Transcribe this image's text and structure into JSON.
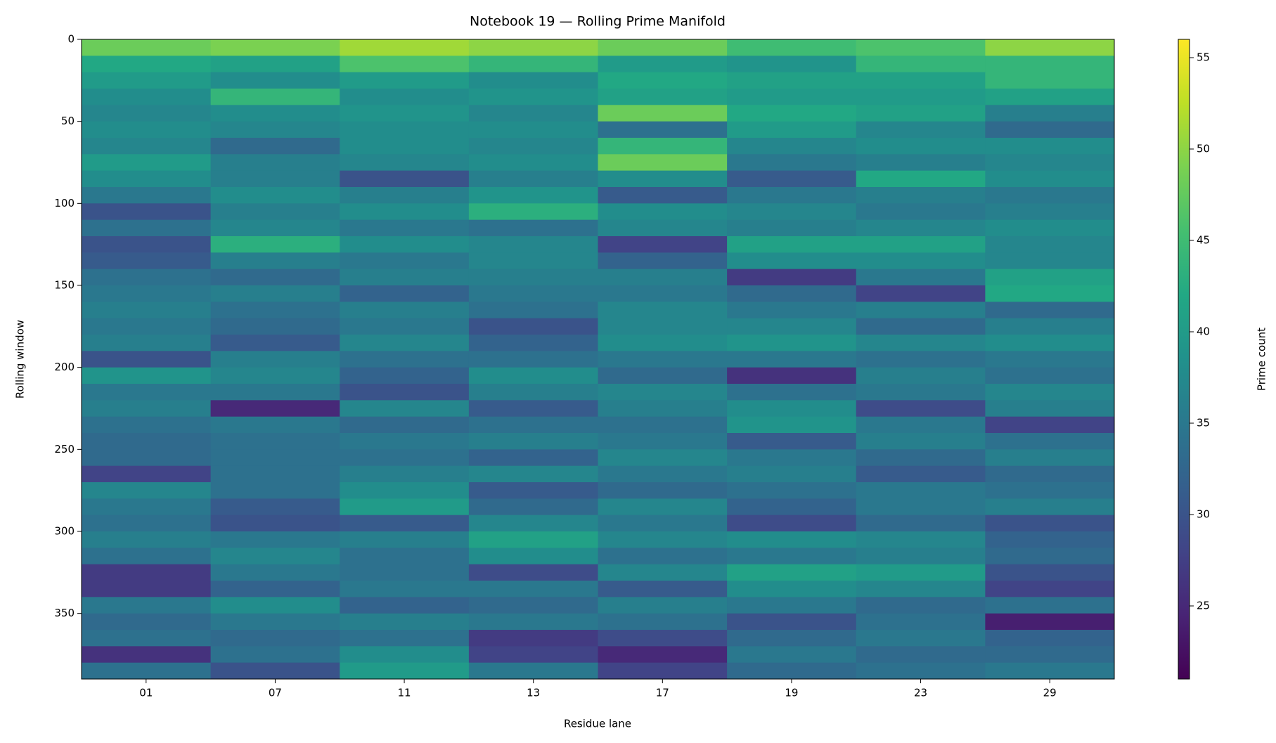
{
  "chart_data": {
    "type": "heatmap",
    "title": "Notebook 19 — Rolling Prime Manifold",
    "x_label": "Residue lane",
    "y_label": "Rolling window",
    "colorbar_label": "Prime count",
    "colormap": "viridis",
    "categories": [
      "01",
      "07",
      "11",
      "13",
      "17",
      "19",
      "23",
      "29"
    ],
    "rows": [
      0,
      10,
      20,
      30,
      40,
      50,
      60,
      70,
      80,
      90,
      100,
      110,
      120,
      130,
      140,
      150,
      160,
      170,
      180,
      190,
      200,
      210,
      220,
      230,
      240,
      250,
      260,
      270,
      280,
      290,
      300,
      310,
      320,
      330,
      340,
      350,
      360,
      370,
      380
    ],
    "ylim": [
      0,
      390
    ],
    "yticks": [
      0,
      50,
      100,
      150,
      200,
      250,
      300,
      350
    ],
    "y_inverted": true,
    "clim": [
      21,
      56
    ],
    "cticks": [
      25,
      30,
      35,
      40,
      45,
      50,
      55
    ],
    "values": [
      [
        48,
        49,
        51,
        50,
        48,
        45,
        46,
        50
      ],
      [
        42,
        41,
        46,
        44,
        40,
        39,
        44,
        44
      ],
      [
        40,
        38,
        40,
        38,
        42,
        41,
        41,
        44
      ],
      [
        38,
        44,
        38,
        39,
        41,
        40,
        40,
        41
      ],
      [
        37,
        38,
        39,
        37,
        48,
        42,
        41,
        36
      ],
      [
        38,
        37,
        38,
        38,
        34,
        40,
        37,
        33
      ],
      [
        37,
        33,
        38,
        37,
        44,
        37,
        38,
        38
      ],
      [
        40,
        36,
        37,
        38,
        48,
        35,
        36,
        37
      ],
      [
        38,
        36,
        30,
        36,
        38,
        31,
        42,
        38
      ],
      [
        35,
        38,
        36,
        39,
        31,
        35,
        36,
        35
      ],
      [
        30,
        36,
        38,
        43,
        38,
        37,
        35,
        36
      ],
      [
        34,
        37,
        35,
        34,
        37,
        36,
        37,
        38
      ],
      [
        30,
        43,
        38,
        37,
        28,
        41,
        41,
        37
      ],
      [
        31,
        36,
        35,
        37,
        32,
        38,
        38,
        37
      ],
      [
        34,
        33,
        36,
        36,
        36,
        27,
        35,
        41
      ],
      [
        35,
        36,
        32,
        35,
        35,
        33,
        28,
        42
      ],
      [
        36,
        34,
        36,
        34,
        37,
        35,
        36,
        33
      ],
      [
        35,
        33,
        35,
        30,
        37,
        37,
        33,
        36
      ],
      [
        36,
        31,
        37,
        32,
        38,
        39,
        37,
        38
      ],
      [
        30,
        36,
        34,
        34,
        35,
        35,
        34,
        35
      ],
      [
        39,
        37,
        32,
        38,
        33,
        26,
        36,
        34
      ],
      [
        35,
        35,
        30,
        36,
        37,
        34,
        35,
        37
      ],
      [
        36,
        25,
        37,
        31,
        36,
        38,
        29,
        36
      ],
      [
        34,
        35,
        33,
        34,
        34,
        39,
        35,
        28
      ],
      [
        33,
        34,
        35,
        36,
        35,
        31,
        36,
        34
      ],
      [
        33,
        34,
        34,
        32,
        37,
        35,
        33,
        36
      ],
      [
        28,
        34,
        36,
        37,
        35,
        36,
        31,
        33
      ],
      [
        37,
        34,
        38,
        31,
        33,
        34,
        35,
        34
      ],
      [
        35,
        31,
        40,
        33,
        37,
        32,
        35,
        36
      ],
      [
        34,
        30,
        31,
        37,
        35,
        29,
        33,
        30
      ],
      [
        36,
        35,
        36,
        41,
        37,
        38,
        37,
        32
      ],
      [
        34,
        37,
        34,
        38,
        34,
        35,
        36,
        33
      ],
      [
        27,
        35,
        34,
        29,
        37,
        41,
        40,
        30
      ],
      [
        27,
        32,
        35,
        35,
        31,
        38,
        37,
        28
      ],
      [
        35,
        38,
        32,
        33,
        36,
        35,
        33,
        34
      ],
      [
        33,
        35,
        36,
        35,
        34,
        30,
        34,
        24
      ],
      [
        34,
        33,
        34,
        27,
        29,
        33,
        35,
        32
      ],
      [
        26,
        34,
        38,
        28,
        25,
        35,
        33,
        33
      ],
      [
        34,
        30,
        40,
        35,
        28,
        33,
        34,
        35
      ]
    ]
  }
}
